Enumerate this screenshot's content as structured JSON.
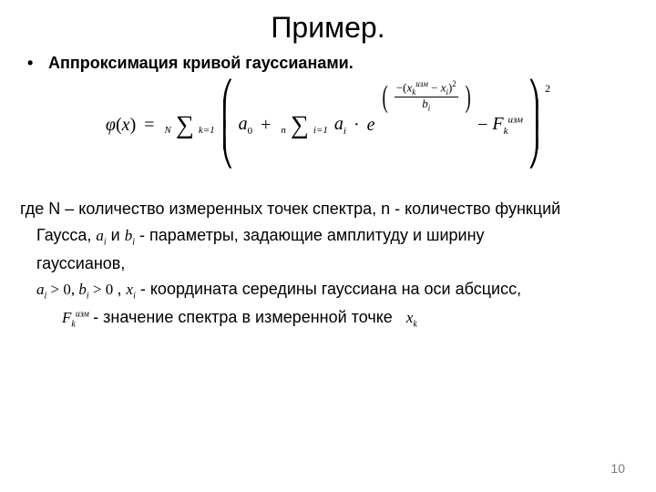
{
  "title": "Пример.",
  "bullet": "Аппроксимация кривой гауссианами.",
  "formula": {
    "phi": "φ",
    "x": "x",
    "eq": "=",
    "sum1_top": "N",
    "sum1_bot": "k=1",
    "a0": "a",
    "zero": "0",
    "plus": "+",
    "sum2_top": "n",
    "sum2_bot": "i=1",
    "ai": "a",
    "i": "i",
    "dot": "·",
    "e": "e",
    "exp_num_l": "−(",
    "exp_xk": "x",
    "exp_k": "k",
    "exp_izm": "изм",
    "exp_minus": " − ",
    "exp_xi": "x",
    "exp_i": "i",
    "exp_num_r": ")",
    "exp_sq": "2",
    "exp_den_b": "b",
    "exp_den_i": "i",
    "minus": " − ",
    "F": "F",
    "Fk": "k",
    "Fizm": "изм",
    "outer_sq": "2"
  },
  "para1a": "где N – количество измеренных точек спектра, n - количество функций",
  "para1b_pre": "Гаусса,   ",
  "m_ai_a": "a",
  "m_ai_i": "i",
  "para1b_mid": "  и  ",
  "m_bi_b": "b",
  "m_bi_i": "i",
  "para1b_post": "  - параметры, задающие амплитуду и ширину",
  "para1c": "гауссианов,",
  "cond_a": "a",
  "cond_i1": "i",
  "cond_gt1": " > 0, ",
  "cond_b": "b",
  "cond_i2": "i",
  "cond_gt2": " > 0",
  "para2_gap": ",       ",
  "m_xi_x": "x",
  "m_xi_i": "i",
  "para2_rest": " - координата середины гауссиана на оси абсцисс,",
  "m_Fk_F": "F",
  "m_Fk_k": "k",
  "m_Fk_izm": "изм",
  "para3": " - значение спектра в измеренной точке",
  "m_xk_x": "x",
  "m_xk_k": "k",
  "page": "10"
}
